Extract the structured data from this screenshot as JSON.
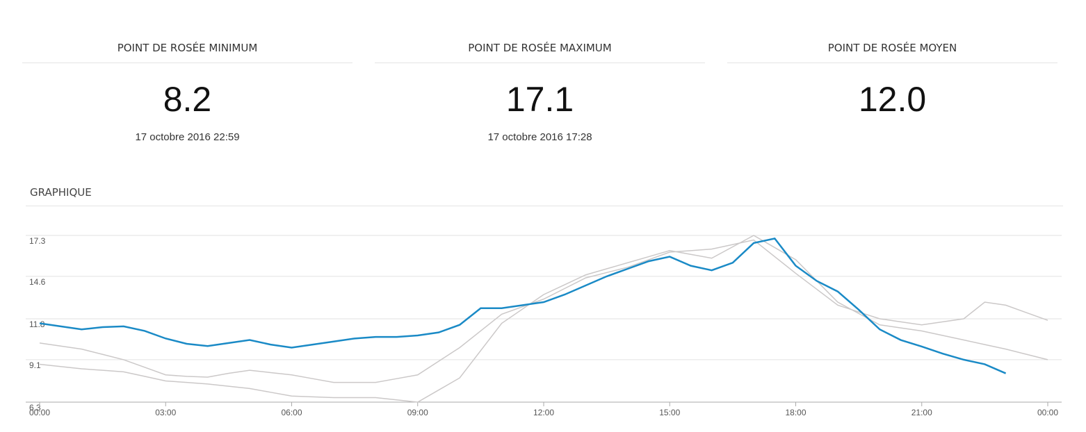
{
  "stats": [
    {
      "title": "POINT DE ROSÉE MINIMUM",
      "value": "8.2",
      "date": "17 octobre 2016 22:59"
    },
    {
      "title": "POINT DE ROSÉE MAXIMUM",
      "value": "17.1",
      "date": "17 octobre 2016 17:28"
    },
    {
      "title": "POINT DE ROSÉE MOYEN",
      "value": "12.0"
    }
  ],
  "section_title": "GRAPHIQUE",
  "chart_data": {
    "type": "line",
    "x": [
      0,
      0.5,
      1,
      1.5,
      2,
      2.5,
      3,
      3.5,
      4,
      4.5,
      5,
      5.5,
      6,
      6.5,
      7,
      7.5,
      8,
      8.5,
      9,
      9.5,
      10,
      10.5,
      11,
      11.5,
      12,
      12.5,
      13,
      13.5,
      14,
      14.5,
      15,
      15.5,
      16,
      16.5,
      17,
      17.5,
      18,
      18.5,
      19,
      19.5,
      20,
      20.5,
      21,
      21.5,
      22,
      22.5,
      23,
      23.5,
      24
    ],
    "series": [
      {
        "color": "#cbc8c8",
        "values": [
          10.2,
          10.0,
          9.8,
          9.45,
          9.1,
          8.6,
          8.1,
          8.0,
          7.95,
          8.2,
          8.4,
          8.25,
          8.1,
          7.85,
          7.6,
          7.6,
          7.6,
          7.85,
          8.1,
          9.0,
          9.9,
          11.0,
          12.1,
          12.6,
          13.1,
          13.8,
          14.5,
          14.85,
          15.2,
          15.7,
          16.2,
          16.3,
          16.4,
          16.7,
          17.0,
          15.9,
          14.8,
          13.75,
          12.7,
          12.25,
          11.8,
          11.6,
          11.4,
          11.6,
          11.8,
          12.9,
          12.7,
          12.2,
          11.7
        ]
      },
      {
        "color": "#cbc8c8",
        "values": [
          8.8,
          8.65,
          8.5,
          8.4,
          8.3,
          8.0,
          7.7,
          7.6,
          7.5,
          7.35,
          7.2,
          6.95,
          6.7,
          6.65,
          6.6,
          6.6,
          6.6,
          6.45,
          6.3,
          7.1,
          7.9,
          9.7,
          11.5,
          12.45,
          13.4,
          14.05,
          14.7,
          15.1,
          15.5,
          15.9,
          16.3,
          16.05,
          15.8,
          16.55,
          17.3,
          16.5,
          15.7,
          14.3,
          12.9,
          12.15,
          11.4,
          11.2,
          11.0,
          10.7,
          10.4,
          10.1,
          9.8,
          9.45,
          9.1
        ]
      },
      {
        "color": "#1a8ac6",
        "values": [
          11.5,
          11.3,
          11.1,
          11.25,
          11.3,
          11.0,
          10.5,
          10.15,
          10.0,
          10.2,
          10.4,
          10.1,
          9.9,
          10.1,
          10.3,
          10.5,
          10.6,
          10.6,
          10.7,
          10.9,
          11.4,
          12.5,
          12.5,
          12.7,
          12.9,
          13.4,
          14.0,
          14.6,
          15.1,
          15.6,
          15.9,
          15.3,
          15.0,
          15.5,
          16.8,
          17.1,
          15.3,
          14.3,
          13.6,
          12.4,
          11.1,
          10.4,
          9.97,
          9.5,
          9.1,
          8.8,
          8.2,
          null,
          null
        ]
      }
    ],
    "xlim": [
      0,
      24
    ],
    "xticks": [
      {
        "value": 0,
        "label": "00:00"
      },
      {
        "value": 3,
        "label": "03:00"
      },
      {
        "value": 6,
        "label": "06:00"
      },
      {
        "value": 9,
        "label": "09:00"
      },
      {
        "value": 12,
        "label": "12:00"
      },
      {
        "value": 15,
        "label": "15:00"
      },
      {
        "value": 18,
        "label": "18:00"
      },
      {
        "value": 21,
        "label": "21:00"
      },
      {
        "value": 24,
        "label": "00:00"
      }
    ],
    "ylim": [
      6.3,
      17.3
    ],
    "yticks": [
      6.3,
      9.1,
      11.8,
      14.6,
      17.3
    ],
    "grid": true
  }
}
